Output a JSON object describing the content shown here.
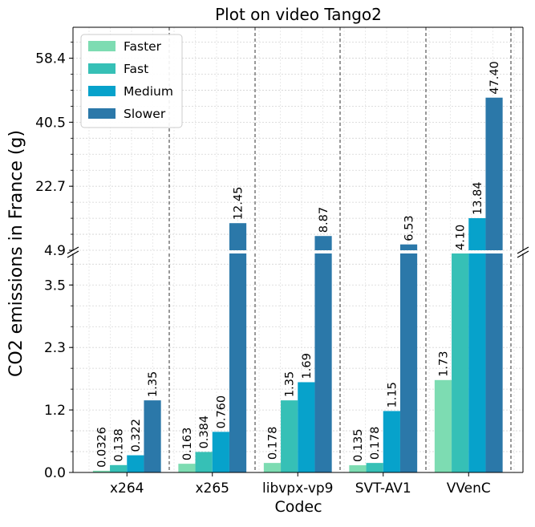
{
  "chart_data": {
    "type": "bar",
    "title": "Plot on video Tango2",
    "xlabel": "Codec",
    "ylabel": "CO2 emissions in France (g)",
    "categories": [
      "x264",
      "x265",
      "libvpx-vp9",
      "SVT-AV1",
      "VVenC"
    ],
    "series": [
      {
        "name": "Faster",
        "color": "#7ddcb2",
        "values": [
          0.0326,
          0.163,
          0.178,
          0.135,
          1.73
        ],
        "labels": [
          "0.0326",
          "0.163",
          "0.178",
          "0.135",
          "1.73"
        ]
      },
      {
        "name": "Fast",
        "color": "#36c0b6",
        "values": [
          0.138,
          0.384,
          1.35,
          0.178,
          4.1
        ],
        "labels": [
          "0.138",
          "0.384",
          "1.35",
          "0.178",
          "4.10"
        ]
      },
      {
        "name": "Medium",
        "color": "#07a2cb",
        "values": [
          0.322,
          0.76,
          1.69,
          1.15,
          13.84
        ],
        "labels": [
          "0.322",
          "0.760",
          "1.69",
          "1.15",
          "13.84"
        ]
      },
      {
        "name": "Slower",
        "color": "#2b78a9",
        "values": [
          1.35,
          12.45,
          8.87,
          6.53,
          47.4
        ],
        "labels": [
          "1.35",
          "12.45",
          "8.87",
          "6.53",
          "47.40"
        ]
      }
    ],
    "broken_axis": {
      "lower_range": [
        0,
        4.1
      ],
      "upper_range": [
        4.9,
        67
      ],
      "lower_ticks": [
        "0.0",
        "1.2",
        "2.3",
        "3.5"
      ],
      "upper_ticks": [
        "4.9",
        "22.7",
        "40.5",
        "58.4"
      ]
    },
    "legend_position": "top-left",
    "grid": true
  }
}
